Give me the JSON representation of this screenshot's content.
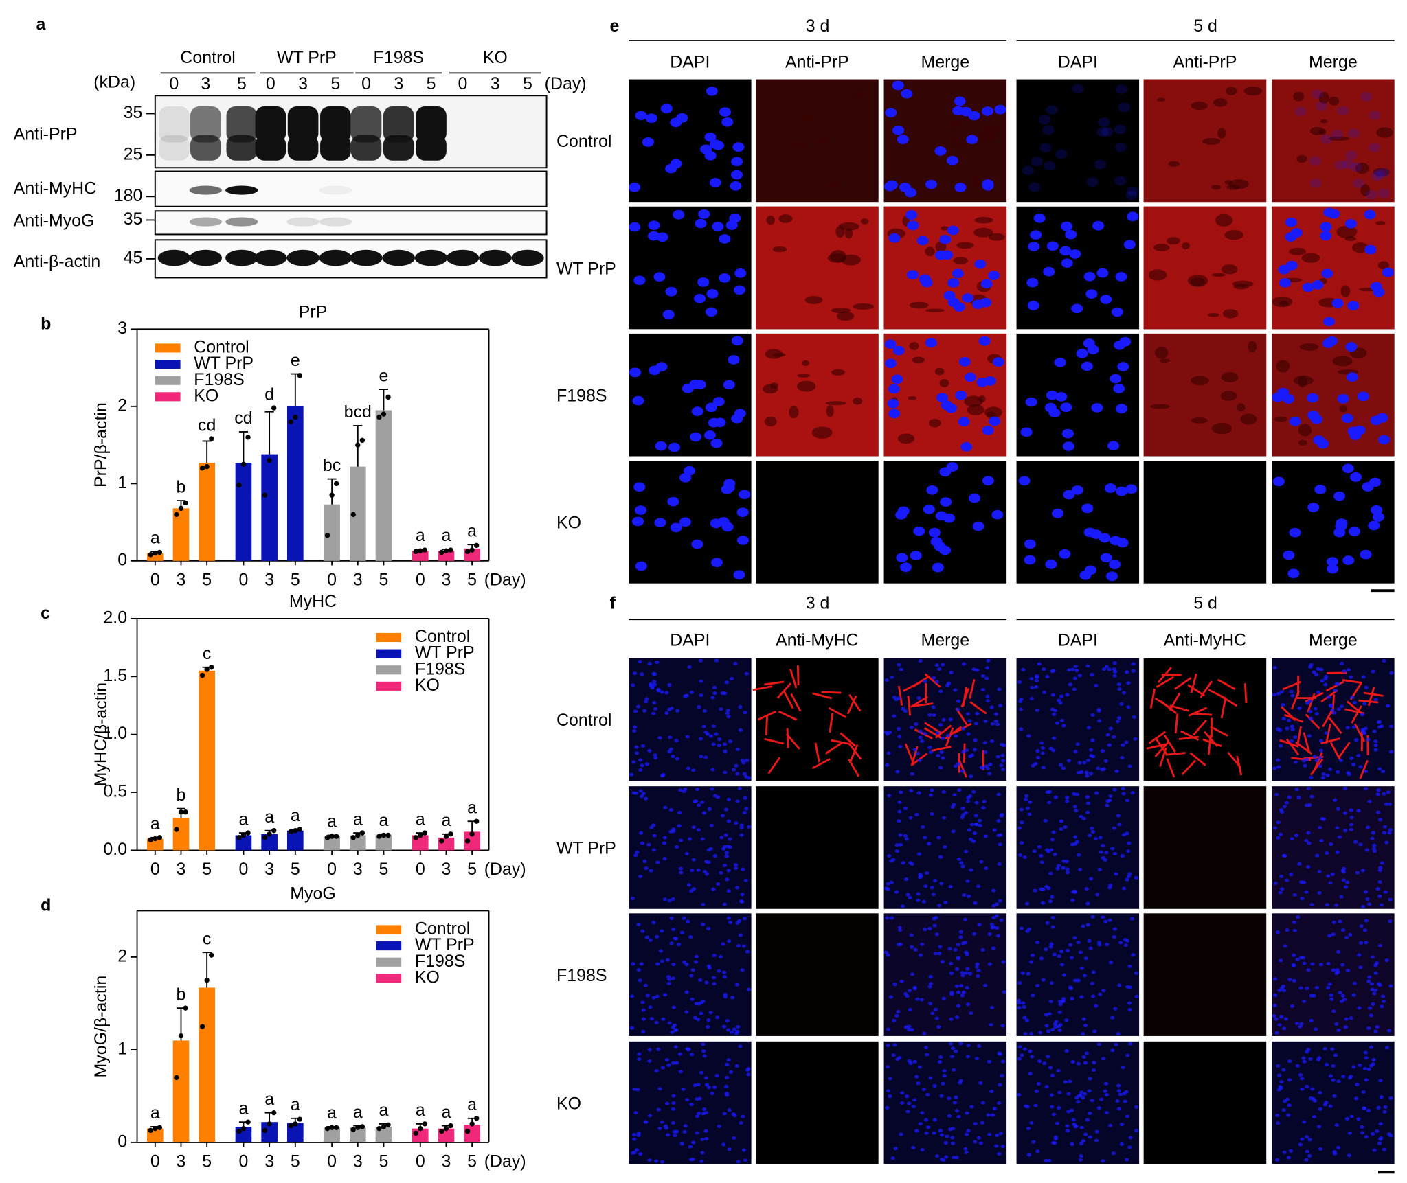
{
  "chart_data": [
    {
      "type": "bar",
      "panel": "b",
      "title": "PrP",
      "y_label": "PrP/β-actin",
      "categories": [
        "0",
        "3",
        "5"
      ],
      "x_unit": "(Day)",
      "ylim": [
        0,
        3
      ],
      "yticks": [
        0,
        1,
        2,
        3
      ],
      "legend": "upper left",
      "series": [
        {
          "name": "Control",
          "color": "#ff8000",
          "values": [
            0.1,
            0.68,
            1.27
          ],
          "errors": [
            0.02,
            0.1,
            0.28
          ],
          "letters": [
            "a",
            "b",
            "cd"
          ],
          "points": [
            [
              0.08,
              0.1,
              0.11
            ],
            [
              0.6,
              0.68,
              0.75
            ],
            [
              1.2,
              1.22,
              1.58
            ]
          ]
        },
        {
          "name": "WT PrP",
          "color": "#0a14b4",
          "values": [
            1.27,
            1.38,
            2.0
          ],
          "errors": [
            0.4,
            0.55,
            0.42
          ],
          "letters": [
            "cd",
            "d",
            "e"
          ],
          "points": [
            [
              0.98,
              1.25,
              1.6
            ],
            [
              0.85,
              1.3,
              1.98
            ],
            [
              1.8,
              1.86,
              2.4
            ]
          ]
        },
        {
          "name": "F198S",
          "color": "#a0a0a0",
          "values": [
            0.73,
            1.22,
            1.95
          ],
          "errors": [
            0.33,
            0.53,
            0.27
          ],
          "letters": [
            "bc",
            "bcd",
            "e"
          ],
          "points": [
            [
              0.33,
              0.85,
              1.0
            ],
            [
              0.6,
              1.5,
              1.56
            ],
            [
              1.86,
              1.9,
              2.12
            ]
          ]
        },
        {
          "name": "KO",
          "color": "#f0287a",
          "values": [
            0.13,
            0.13,
            0.16
          ],
          "errors": [
            0.02,
            0.02,
            0.05
          ],
          "letters": [
            "a",
            "a",
            "a"
          ],
          "points": [
            [
              0.12,
              0.13,
              0.14
            ],
            [
              0.11,
              0.13,
              0.14
            ],
            [
              0.12,
              0.14,
              0.2
            ]
          ]
        }
      ]
    },
    {
      "type": "bar",
      "panel": "c",
      "title": "MyHC",
      "y_label": "MyHC/β-actin",
      "categories": [
        "0",
        "3",
        "5"
      ],
      "x_unit": "(Day)",
      "ylim": [
        0,
        2
      ],
      "yticks": [
        {
          "value": 0,
          "label": "0.0"
        },
        0.5,
        {
          "value": 1,
          "label": "1.0"
        },
        1.5,
        {
          "value": 2,
          "label": "2.0"
        }
      ],
      "legend": "upper right",
      "series": [
        {
          "name": "Control",
          "color": "#ff8000",
          "values": [
            0.1,
            0.28,
            1.55
          ],
          "errors": [
            0.01,
            0.08,
            0.03
          ],
          "letters": [
            "a",
            "b",
            "c"
          ],
          "points": [
            [
              0.09,
              0.1,
              0.11
            ],
            [
              0.18,
              0.33,
              0.33
            ],
            [
              1.51,
              1.56,
              1.58
            ]
          ]
        },
        {
          "name": "WT PrP",
          "color": "#0a14b4",
          "values": [
            0.13,
            0.14,
            0.17
          ],
          "errors": [
            0.02,
            0.03,
            0.01
          ],
          "letters": [
            "a",
            "a",
            "a"
          ],
          "points": [
            [
              0.11,
              0.13,
              0.15
            ],
            [
              0.11,
              0.14,
              0.17
            ],
            [
              0.16,
              0.17,
              0.18
            ]
          ]
        },
        {
          "name": "F198S",
          "color": "#a0a0a0",
          "values": [
            0.12,
            0.13,
            0.13
          ],
          "errors": [
            0.01,
            0.02,
            0.01
          ],
          "letters": [
            "a",
            "a",
            "a"
          ],
          "points": [
            [
              0.11,
              0.12,
              0.12
            ],
            [
              0.11,
              0.13,
              0.15
            ],
            [
              0.12,
              0.13,
              0.13
            ]
          ]
        },
        {
          "name": "KO",
          "color": "#f0287a",
          "values": [
            0.13,
            0.11,
            0.16
          ],
          "errors": [
            0.02,
            0.03,
            0.09
          ],
          "letters": [
            "a",
            "a",
            "a"
          ],
          "points": [
            [
              0.11,
              0.13,
              0.15
            ],
            [
              0.08,
              0.12,
              0.14
            ],
            [
              0.08,
              0.14,
              0.25
            ]
          ]
        }
      ]
    },
    {
      "type": "bar",
      "panel": "d",
      "title": "MyoG",
      "y_label": "MyoG/β-actin",
      "categories": [
        "0",
        "3",
        "5"
      ],
      "x_unit": "(Day)",
      "ylim": [
        0,
        2.5
      ],
      "yticks": [
        0,
        1,
        2
      ],
      "legend": "upper right",
      "series": [
        {
          "name": "Control",
          "color": "#ff8000",
          "values": [
            0.15,
            1.1,
            1.67
          ],
          "errors": [
            0.02,
            0.35,
            0.38
          ],
          "letters": [
            "a",
            "b",
            "c"
          ],
          "points": [
            [
              0.13,
              0.15,
              0.16
            ],
            [
              0.7,
              1.15,
              1.45
            ],
            [
              1.25,
              1.75,
              2.02
            ]
          ]
        },
        {
          "name": "WT PrP",
          "color": "#0a14b4",
          "values": [
            0.17,
            0.22,
            0.21
          ],
          "errors": [
            0.05,
            0.1,
            0.05
          ],
          "letters": [
            "a",
            "a",
            "a"
          ],
          "points": [
            [
              0.12,
              0.15,
              0.22
            ],
            [
              0.13,
              0.2,
              0.32
            ],
            [
              0.18,
              0.2,
              0.25
            ]
          ]
        },
        {
          "name": "F198S",
          "color": "#a0a0a0",
          "values": [
            0.16,
            0.16,
            0.17
          ],
          "errors": [
            0.01,
            0.02,
            0.03
          ],
          "letters": [
            "a",
            "a",
            "a"
          ],
          "points": [
            [
              0.15,
              0.16,
              0.16
            ],
            [
              0.14,
              0.16,
              0.17
            ],
            [
              0.15,
              0.17,
              0.19
            ]
          ]
        },
        {
          "name": "KO",
          "color": "#f0287a",
          "values": [
            0.15,
            0.15,
            0.19
          ],
          "errors": [
            0.05,
            0.03,
            0.07
          ],
          "letters": [
            "a",
            "a",
            "a"
          ],
          "points": [
            [
              0.1,
              0.15,
              0.2
            ],
            [
              0.12,
              0.15,
              0.18
            ],
            [
              0.12,
              0.2,
              0.26
            ]
          ]
        }
      ]
    }
  ],
  "figure": {
    "blot": {
      "panel": "a",
      "groups": [
        "Control",
        "WT PrP",
        "F198S",
        "KO"
      ],
      "unit": "(kDa)",
      "days": [
        "0",
        "3",
        "5"
      ],
      "day_unit": "(Day)",
      "rows": [
        {
          "label": "Anti-PrP",
          "markers": [
            35,
            25
          ]
        },
        {
          "label": "Anti-MyHC",
          "markers": [
            180
          ]
        },
        {
          "label": "Anti-MyoG",
          "markers": [
            35
          ]
        },
        {
          "label": "Anti-β-actin",
          "markers": [
            45
          ]
        }
      ]
    },
    "imaging": [
      {
        "panel": "e",
        "times": [
          "3 d",
          "5 d"
        ],
        "stains": [
          "DAPI",
          "Anti-PrP",
          "Merge"
        ],
        "rows": [
          "Control",
          "WT PrP",
          "F198S",
          "KO"
        ]
      },
      {
        "panel": "f",
        "times": [
          "3 d",
          "5 d"
        ],
        "stains": [
          "DAPI",
          "Anti-MyHC",
          "Merge"
        ],
        "rows": [
          "Control",
          "WT PrP",
          "F198S",
          "KO"
        ]
      }
    ]
  }
}
